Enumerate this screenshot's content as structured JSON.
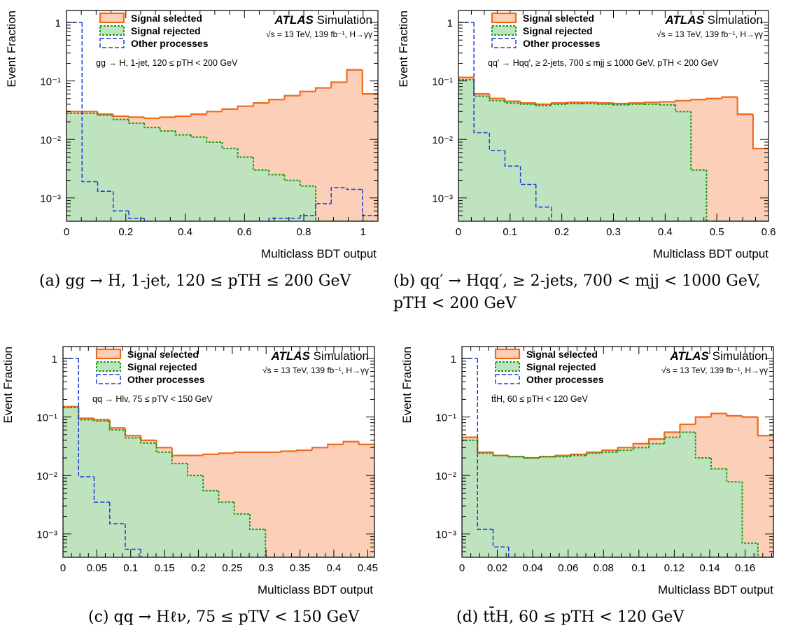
{
  "chart_data": [
    {
      "type": "area",
      "panel": "a",
      "title": "ATLAS",
      "title_suffix": "Simulation",
      "subtitle": "√s = 13 TeV, 139 fb⁻¹, H→γγ",
      "annotation": "gg → H, 1-jet, 120 ≤ pTH < 200 GeV",
      "xlabel": "Multiclass BDT output",
      "ylabel": "Event Fraction",
      "xlim": [
        0,
        1.05
      ],
      "ylim": [
        0.0004,
        1.6
      ],
      "ylog": true,
      "xticks": [
        0,
        0.2,
        0.4,
        0.6,
        0.8,
        1
      ],
      "xtick_labels": [
        "0",
        "0.2",
        "0.4",
        "0.6",
        "0.8",
        "1"
      ],
      "yticks": [
        0.001,
        0.01,
        0.1,
        1
      ],
      "ytick_labels": [
        "10⁻³",
        "10⁻²",
        "10⁻¹",
        "1"
      ],
      "legend": {
        "placement": "top-left",
        "entries": [
          "Signal selected",
          "Signal rejected",
          "Other processes"
        ]
      },
      "bin_edges": [
        0,
        0.0525,
        0.105,
        0.1575,
        0.21,
        0.2625,
        0.315,
        0.3675,
        0.42,
        0.4725,
        0.525,
        0.5775,
        0.63,
        0.6825,
        0.735,
        0.7875,
        0.84,
        0.8925,
        0.945,
        0.9975,
        1.05
      ],
      "series": [
        {
          "name": "Signal selected",
          "kind": "selected",
          "values": [
            0.03,
            0.03,
            0.027,
            0.025,
            0.024,
            0.023,
            0.024,
            0.025,
            0.027,
            0.03,
            0.033,
            0.037,
            0.042,
            0.048,
            0.056,
            0.066,
            0.076,
            0.095,
            0.155,
            0.06
          ]
        },
        {
          "name": "Signal rejected",
          "kind": "rejected",
          "values": [
            0.028,
            0.028,
            0.026,
            0.022,
            0.019,
            0.016,
            0.014,
            0.012,
            0.011,
            0.009,
            0.007,
            0.005,
            0.003,
            0.0025,
            0.002,
            0.0016,
            0.0004,
            0.0004,
            0.0004,
            0.0004
          ]
        },
        {
          "name": "Other processes",
          "kind": "other",
          "values": [
            1.0,
            0.0019,
            0.0013,
            0.0006,
            0.00045,
            0.0004,
            0.0004,
            0.0004,
            0.0004,
            0.0004,
            0.0004,
            0.0004,
            0.0004,
            0.00045,
            0.00045,
            0.0005,
            0.0008,
            0.0015,
            0.0014,
            0.0005
          ]
        }
      ]
    },
    {
      "type": "area",
      "panel": "b",
      "title": "ATLAS",
      "title_suffix": "Simulation",
      "subtitle": "√s = 13 TeV, 139 fb⁻¹, H→γγ",
      "annotation": "qq' → Hqq', ≥ 2-jets, 700 ≤ mjj ≤ 1000 GeV, pTH < 200 GeV",
      "xlabel": "Multiclass BDT output",
      "ylabel": "Event Fraction",
      "xlim": [
        0,
        0.6
      ],
      "ylim": [
        0.0004,
        1.6
      ],
      "ylog": true,
      "xticks": [
        0,
        0.1,
        0.2,
        0.3,
        0.4,
        0.5,
        0.6
      ],
      "xtick_labels": [
        "0",
        "0.1",
        "0.2",
        "0.3",
        "0.4",
        "0.5",
        "0.6"
      ],
      "yticks": [
        0.001,
        0.01,
        0.1,
        1
      ],
      "ytick_labels": [
        "10⁻³",
        "10⁻²",
        "10⁻¹",
        "1"
      ],
      "legend": {
        "placement": "top-left",
        "entries": [
          "Signal selected",
          "Signal rejected",
          "Other processes"
        ]
      },
      "bin_edges": [
        0,
        0.03,
        0.06,
        0.09,
        0.12,
        0.15,
        0.18,
        0.21,
        0.24,
        0.27,
        0.3,
        0.33,
        0.36,
        0.39,
        0.42,
        0.45,
        0.48,
        0.51,
        0.54,
        0.57,
        0.6
      ],
      "series": [
        {
          "name": "Signal selected",
          "kind": "selected",
          "values": [
            0.115,
            0.06,
            0.05,
            0.045,
            0.042,
            0.04,
            0.042,
            0.043,
            0.043,
            0.042,
            0.041,
            0.042,
            0.043,
            0.044,
            0.046,
            0.048,
            0.05,
            0.053,
            0.027,
            0.007
          ]
        },
        {
          "name": "Signal rejected",
          "kind": "rejected",
          "values": [
            0.105,
            0.055,
            0.046,
            0.042,
            0.04,
            0.038,
            0.04,
            0.041,
            0.041,
            0.04,
            0.039,
            0.04,
            0.04,
            0.039,
            0.03,
            0.003,
            0.0004,
            0.0004,
            0.0004,
            0.0004
          ]
        },
        {
          "name": "Other processes",
          "kind": "other",
          "values": [
            1.0,
            0.013,
            0.0065,
            0.0035,
            0.0017,
            0.0007,
            0.0004,
            0.0004,
            0.0004,
            0.0004,
            0.0004,
            0.0004,
            0.0004,
            0.0004,
            0.0004,
            0.0004,
            0.0004,
            0.0004,
            0.0004,
            0.0004
          ]
        }
      ]
    },
    {
      "type": "area",
      "panel": "c",
      "title": "ATLAS",
      "title_suffix": "Simulation",
      "subtitle": "√s = 13 TeV, 139 fb⁻¹, H→γγ",
      "annotation": "qq → Hlv, 75 ≤ pTV < 150 GeV",
      "xlabel": "Multiclass BDT output",
      "ylabel": "Event Fraction",
      "xlim": [
        0,
        0.46
      ],
      "ylim": [
        0.0004,
        1.6
      ],
      "ylog": true,
      "xticks": [
        0,
        0.05,
        0.1,
        0.15,
        0.2,
        0.25,
        0.3,
        0.35,
        0.4,
        0.45
      ],
      "xtick_labels": [
        "0",
        "0.05",
        "0.1",
        "0.15",
        "0.2",
        "0.25",
        "0.3",
        "0.35",
        "0.4",
        "0.45"
      ],
      "yticks": [
        0.001,
        0.01,
        0.1,
        1
      ],
      "ytick_labels": [
        "10⁻³",
        "10⁻²",
        "10⁻¹",
        "1"
      ],
      "legend": {
        "placement": "top-left",
        "entries": [
          "Signal selected",
          "Signal rejected",
          "Other processes"
        ]
      },
      "bin_edges": [
        0,
        0.023,
        0.046,
        0.069,
        0.092,
        0.115,
        0.138,
        0.161,
        0.184,
        0.207,
        0.23,
        0.253,
        0.276,
        0.299,
        0.322,
        0.345,
        0.368,
        0.391,
        0.414,
        0.437,
        0.46
      ],
      "series": [
        {
          "name": "Signal selected",
          "kind": "selected",
          "values": [
            0.15,
            0.095,
            0.09,
            0.065,
            0.048,
            0.04,
            0.03,
            0.022,
            0.022,
            0.023,
            0.024,
            0.025,
            0.025,
            0.025,
            0.026,
            0.027,
            0.03,
            0.034,
            0.038,
            0.034
          ]
        },
        {
          "name": "Signal rejected",
          "kind": "rejected",
          "values": [
            0.145,
            0.09,
            0.085,
            0.06,
            0.044,
            0.036,
            0.025,
            0.016,
            0.01,
            0.0055,
            0.0035,
            0.0022,
            0.0012,
            0.0004,
            0.0004,
            0.0004,
            0.0004,
            0.0004,
            0.0004,
            0.0004
          ]
        },
        {
          "name": "Other processes",
          "kind": "other",
          "values": [
            1.0,
            0.0095,
            0.0035,
            0.0015,
            0.00055,
            0.0004,
            0.0004,
            0.0004,
            0.0004,
            0.0004,
            0.0004,
            0.0004,
            0.0004,
            0.0004,
            0.0004,
            0.0004,
            0.0004,
            0.0004,
            0.0004,
            0.0004
          ]
        }
      ]
    },
    {
      "type": "area",
      "panel": "d",
      "title": "ATLAS",
      "title_suffix": "Simulation",
      "subtitle": "√s = 13 TeV, 139 fb⁻¹, H→γγ",
      "annotation": "tt̄H, 60 ≤ pTH < 120 GeV",
      "xlabel": "Multiclass BDT output",
      "ylabel": "Event Fraction",
      "xlim": [
        0,
        0.176
      ],
      "ylim": [
        0.0004,
        1.6
      ],
      "ylog": true,
      "xticks": [
        0,
        0.02,
        0.04,
        0.06,
        0.08,
        0.1,
        0.12,
        0.14,
        0.16
      ],
      "xtick_labels": [
        "0",
        "0.02",
        "0.04",
        "0.06",
        "0.08",
        "0.1",
        "0.12",
        "0.14",
        "0.16"
      ],
      "yticks": [
        0.001,
        0.01,
        0.1,
        1
      ],
      "ytick_labels": [
        "10⁻³",
        "10⁻²",
        "10⁻¹",
        "1"
      ],
      "legend": {
        "placement": "top-left",
        "entries": [
          "Signal selected",
          "Signal rejected",
          "Other processes"
        ]
      },
      "bin_edges": [
        0,
        0.0088,
        0.0176,
        0.0264,
        0.0352,
        0.044,
        0.0528,
        0.0616,
        0.0704,
        0.0792,
        0.088,
        0.0968,
        0.1056,
        0.1144,
        0.1232,
        0.132,
        0.1408,
        0.1496,
        0.1584,
        0.1672,
        0.176
      ],
      "series": [
        {
          "name": "Signal selected",
          "kind": "selected",
          "values": [
            0.045,
            0.025,
            0.022,
            0.021,
            0.02,
            0.021,
            0.022,
            0.023,
            0.025,
            0.027,
            0.03,
            0.035,
            0.042,
            0.055,
            0.075,
            0.1,
            0.115,
            0.105,
            0.1,
            0.048
          ]
        },
        {
          "name": "Signal rejected",
          "kind": "rejected",
          "values": [
            0.04,
            0.024,
            0.022,
            0.021,
            0.02,
            0.021,
            0.021,
            0.022,
            0.024,
            0.025,
            0.027,
            0.03,
            0.035,
            0.045,
            0.055,
            0.02,
            0.013,
            0.0078,
            0.0007,
            0.0004
          ]
        },
        {
          "name": "Other processes",
          "kind": "other",
          "values": [
            1.0,
            0.0012,
            0.0006,
            0.0004,
            0.0004,
            0.0004,
            0.0004,
            0.0004,
            0.0004,
            0.0004,
            0.0004,
            0.0004,
            0.0004,
            0.0004,
            0.0004,
            0.0004,
            0.0004,
            0.0004,
            0.0004,
            0.0004
          ]
        }
      ]
    }
  ],
  "captions": {
    "a": "(a) gg → H, 1-jet, 120 ≤ pTH ≤ 200 GeV",
    "b_line1": "(b) qq′ → Hqq′, ≥ 2-jets, 700 < mjj < 1000 GeV,",
    "b_line2": "pTH < 200 GeV",
    "c": "(c) qq → Hℓν, 75 ≤ pTV < 150 GeV",
    "d": "(d) tt̄H, 60 ≤ pTH < 120 GeV"
  },
  "colors": {
    "selected_fill": "#fcd0b8",
    "selected_line": "#f06a1e",
    "rejected_fill": "#bfe3bf",
    "rejected_line": "#1a9d1a",
    "other_line": "#1f3bdc"
  }
}
